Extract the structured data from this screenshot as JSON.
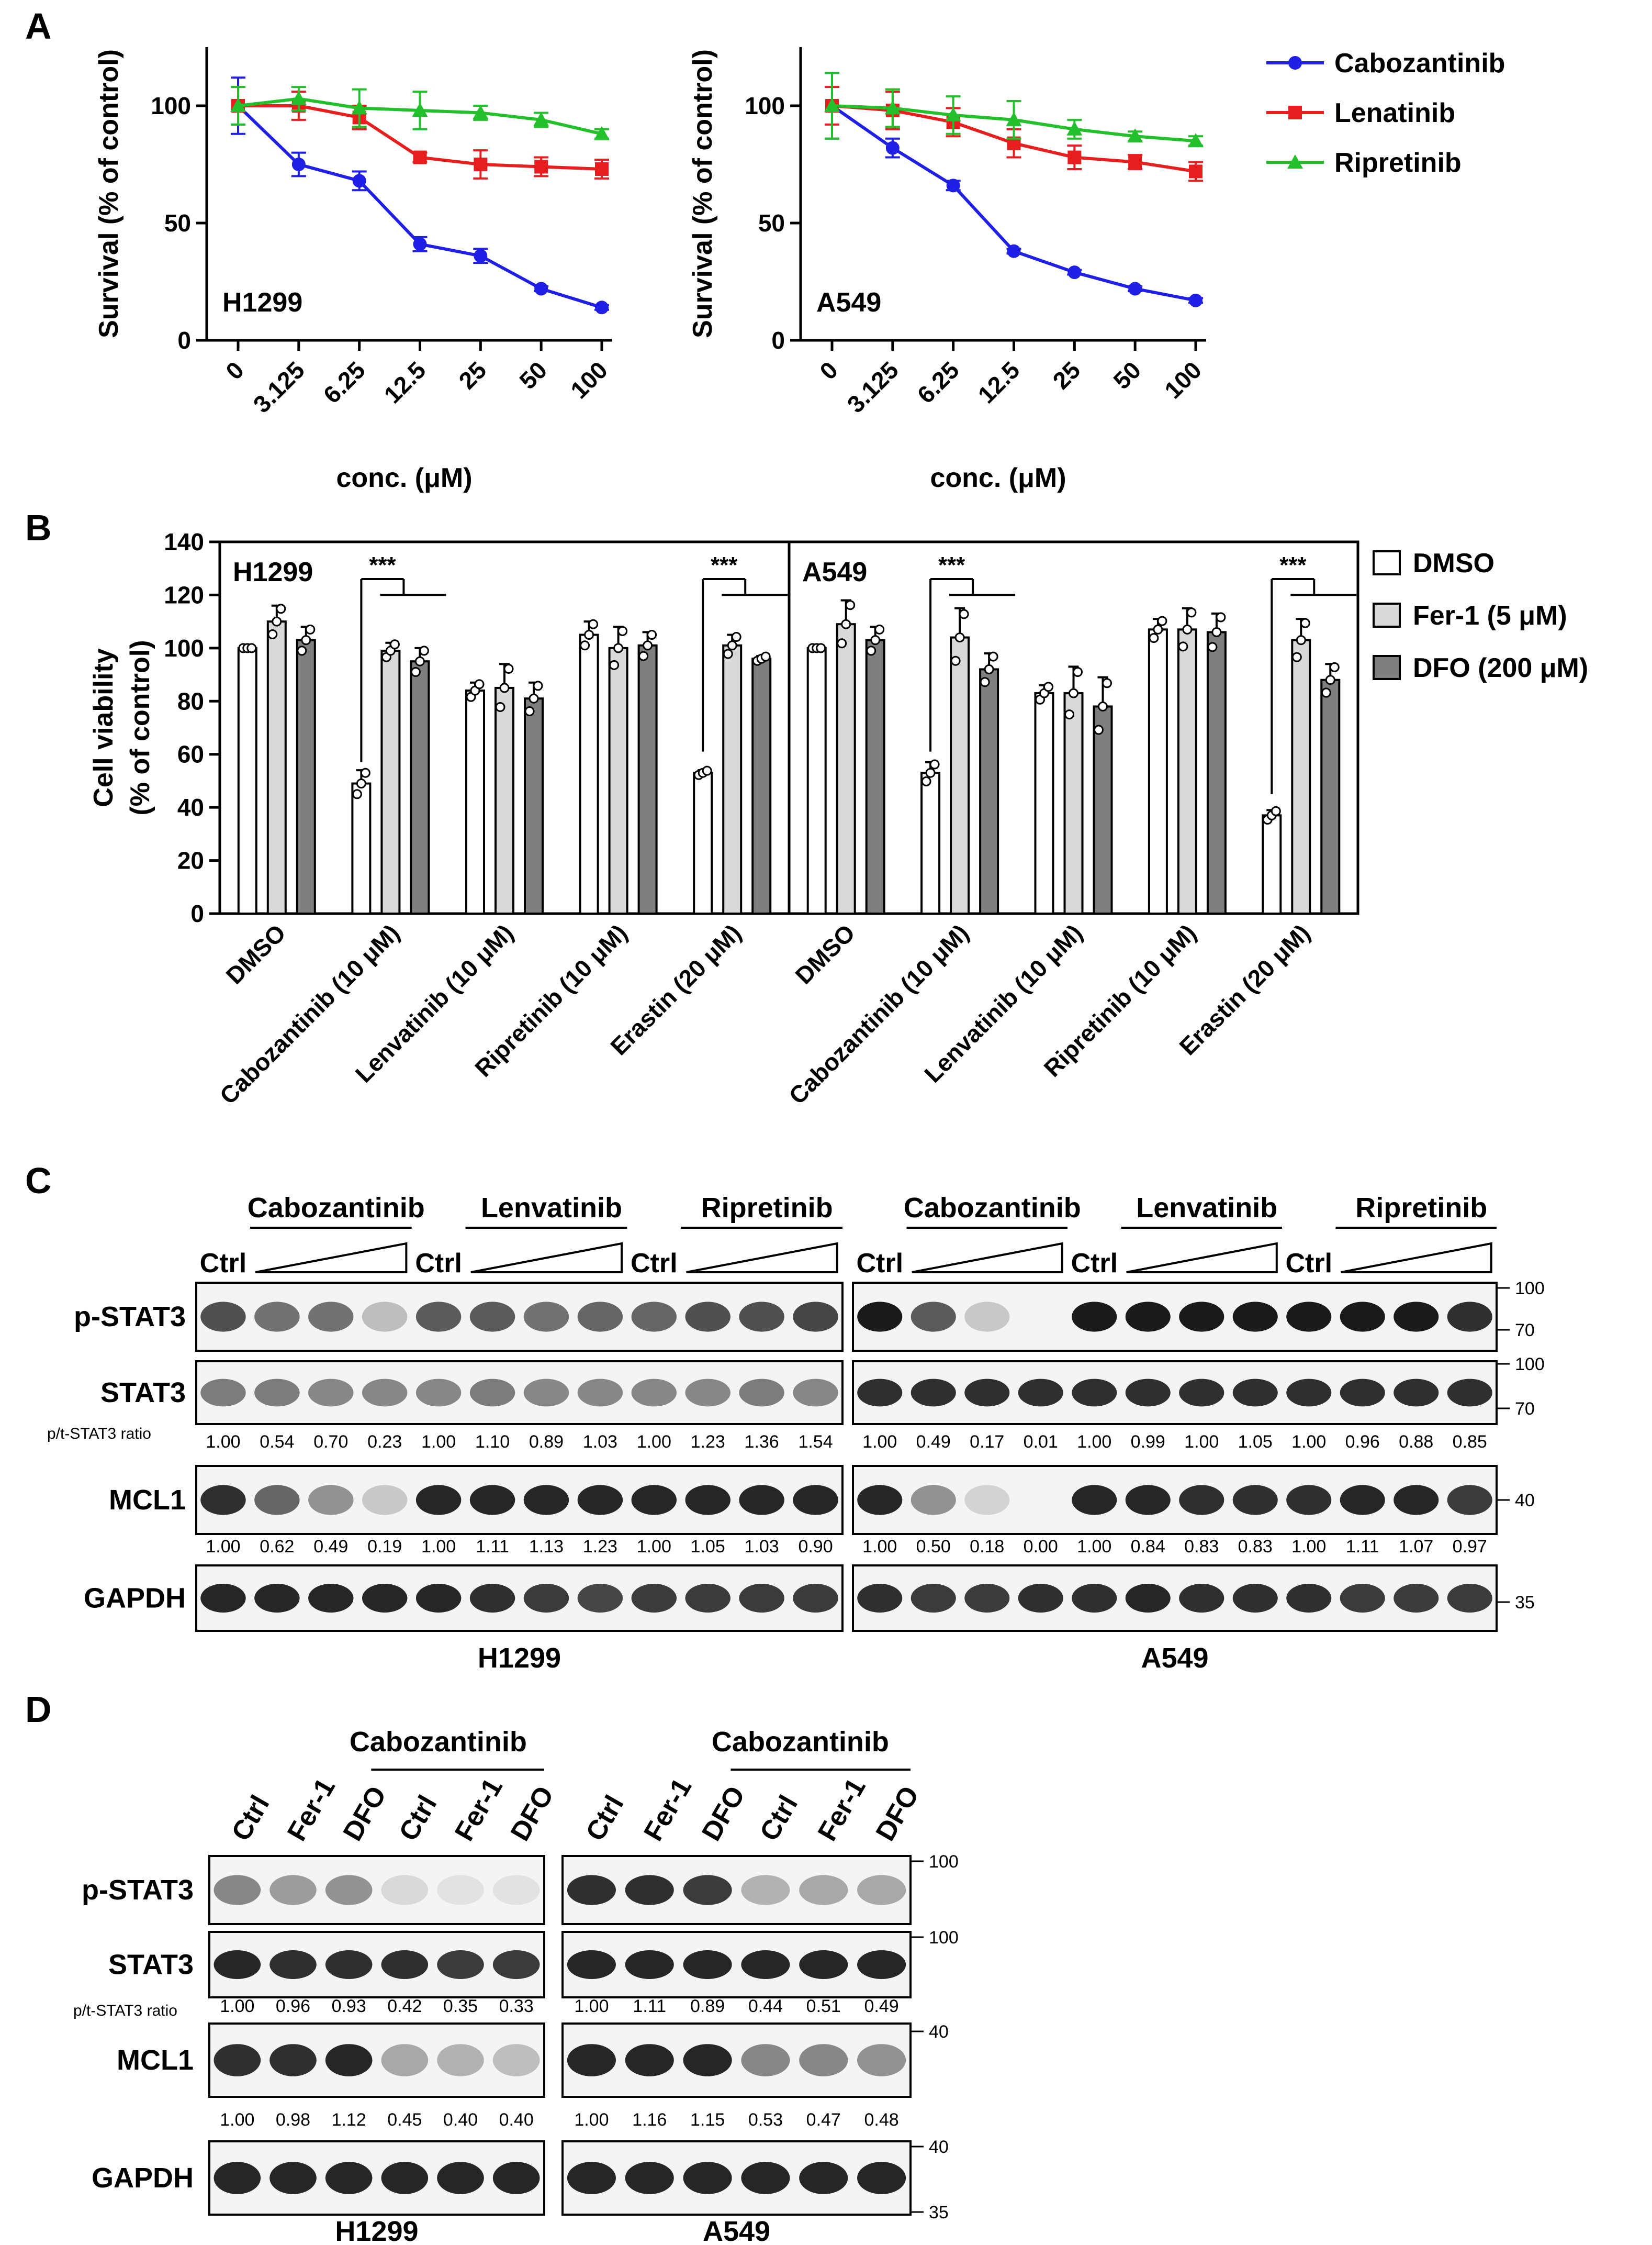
{
  "panels": {
    "A": "A",
    "B": "B",
    "C": "C",
    "D": "D"
  },
  "colors": {
    "cabozantinib": "#1f1fe6",
    "lenatinib": "#e61e1e",
    "ripretinib": "#22c02a",
    "dmso_bar": "#ffffff",
    "fer1_bar": "#d9d9d9",
    "dfo_bar": "#7f7f7f",
    "band": "#1a1a1a"
  },
  "panel_a": {
    "x_title": "conc. (μM)",
    "y_title": "Survival (% of control)",
    "legend": [
      "Cabozantinib",
      "Lenatinib",
      "Ripretinib"
    ],
    "chart_data": [
      {
        "type": "line",
        "cell_line": "H1299",
        "x": [
          "0",
          "3.125",
          "6.25",
          "12.5",
          "25",
          "50",
          "100"
        ],
        "ylim": [
          0,
          125
        ],
        "yticks": [
          0,
          50,
          100
        ],
        "series": [
          {
            "name": "Cabozantinib",
            "values": [
              100,
              75,
              68,
              41,
              36,
              22,
              14
            ],
            "err": [
              12,
              5,
              4,
              3,
              3,
              1,
              1
            ]
          },
          {
            "name": "Lenatinib",
            "values": [
              100,
              100,
              95,
              78,
              75,
              74,
              73
            ],
            "err": [
              8,
              6,
              5,
              2,
              6,
              4,
              4
            ]
          },
          {
            "name": "Ripretinib",
            "values": [
              100,
              103,
              99,
              98,
              97,
              94,
              88
            ],
            "err": [
              8,
              5,
              8,
              8,
              3,
              3,
              2
            ]
          }
        ]
      },
      {
        "type": "line",
        "cell_line": "A549",
        "x": [
          "0",
          "3.125",
          "6.25",
          "12.5",
          "25",
          "50",
          "100"
        ],
        "ylim": [
          0,
          125
        ],
        "yticks": [
          0,
          50,
          100
        ],
        "series": [
          {
            "name": "Cabozantinib",
            "values": [
              100,
              82,
              66,
              38,
              29,
              22,
              17
            ],
            "err": [
              14,
              4,
              2,
              1,
              1,
              1,
              1
            ]
          },
          {
            "name": "Lenatinib",
            "values": [
              100,
              98,
              93,
              84,
              78,
              76,
              72
            ],
            "err": [
              8,
              8,
              6,
              6,
              5,
              3,
              4
            ]
          },
          {
            "name": "Ripretinib",
            "values": [
              100,
              99,
              96,
              94,
              90,
              87,
              85
            ],
            "err": [
              14,
              8,
              8,
              8,
              4,
              2,
              2
            ]
          }
        ]
      }
    ]
  },
  "panel_b": {
    "y_title_line1": "Cell viability",
    "y_title_line2": "(% of control)",
    "significance": "***",
    "legend": [
      "DMSO",
      "Fer-1 (5 μM)",
      "DFO (200 μM)"
    ],
    "chart_data": {
      "type": "bar",
      "ylim": [
        0,
        140
      ],
      "yticks": [
        0,
        20,
        40,
        60,
        80,
        100,
        120,
        140
      ],
      "groups": [
        {
          "cell_line": "H1299",
          "categories": [
            "DMSO",
            "Cabozantinib (10 μM)",
            "Lenvatinib (10 μM)",
            "Ripretinib (10 μM)",
            "Erastin (20 μM)"
          ],
          "series": [
            {
              "name": "DMSO",
              "values": [
                100,
                49,
                84,
                105,
                53
              ],
              "err": [
                0,
                5,
                3,
                5,
                1
              ]
            },
            {
              "name": "Fer-1 (5 μM)",
              "values": [
                110,
                99,
                85,
                100,
                101
              ],
              "err": [
                6,
                3,
                9,
                8,
                4
              ]
            },
            {
              "name": "DFO (200 μM)",
              "values": [
                103,
                95,
                81,
                101,
                96
              ],
              "err": [
                5,
                5,
                6,
                5,
                1
              ]
            }
          ]
        },
        {
          "cell_line": "A549",
          "categories": [
            "DMSO",
            "Cabozantinib (10 μM)",
            "Lenvatinib (10 μM)",
            "Ripretinib (10 μM)",
            "Erastin (20 μM)"
          ],
          "series": [
            {
              "name": "DMSO",
              "values": [
                100,
                53,
                83,
                107,
                37
              ],
              "err": [
                0,
                4,
                3,
                4,
                2
              ]
            },
            {
              "name": "Fer-1 (5 μM)",
              "values": [
                109,
                104,
                83,
                107,
                103
              ],
              "err": [
                9,
                11,
                10,
                8,
                8
              ]
            },
            {
              "name": "DFO (200 μM)",
              "values": [
                103,
                92,
                78,
                106,
                88
              ],
              "err": [
                5,
                6,
                11,
                7,
                6
              ]
            }
          ]
        }
      ],
      "sig_pairs": [
        {
          "group": 0,
          "category": 1
        },
        {
          "group": 0,
          "category": 4
        },
        {
          "group": 1,
          "category": 1
        },
        {
          "group": 1,
          "category": 4
        }
      ]
    }
  },
  "panel_c": {
    "drugs": [
      "Cabozantinib",
      "Lenvatinib",
      "Ripretinib"
    ],
    "ctrl": "Ctrl",
    "rows": [
      "p-STAT3",
      "STAT3",
      "MCL1",
      "GAPDH"
    ],
    "ratio_label": "p/t-STAT3  ratio",
    "cell_lines": [
      "H1299",
      "A549"
    ],
    "mw": {
      "pstat3": [
        "100",
        "70"
      ],
      "stat3": [
        "100",
        "70"
      ],
      "mcl1": [
        "40"
      ],
      "gapdh": [
        "35"
      ]
    },
    "blots": [
      {
        "ratio": [
          "1.00",
          "0.54",
          "0.70",
          "0.23",
          "1.00",
          "1.10",
          "0.89",
          "1.03",
          "1.00",
          "1.23",
          "1.36",
          "1.54"
        ],
        "mcl1": [
          "1.00",
          "0.62",
          "0.49",
          "0.19",
          "1.00",
          "1.11",
          "1.13",
          "1.23",
          "1.00",
          "1.05",
          "1.03",
          "0.90"
        ],
        "intensity": {
          "pstat3": [
            0.75,
            0.6,
            0.6,
            0.25,
            0.7,
            0.7,
            0.6,
            0.65,
            0.65,
            0.75,
            0.75,
            0.8
          ],
          "stat3": [
            0.55,
            0.55,
            0.5,
            0.5,
            0.5,
            0.55,
            0.5,
            0.5,
            0.5,
            0.5,
            0.55,
            0.5
          ],
          "mcl1": [
            0.9,
            0.65,
            0.45,
            0.2,
            0.95,
            0.95,
            0.95,
            0.95,
            0.95,
            0.95,
            0.95,
            0.95
          ],
          "gapdh": [
            0.95,
            0.95,
            0.95,
            0.95,
            0.95,
            0.9,
            0.85,
            0.8,
            0.85,
            0.85,
            0.85,
            0.85
          ]
        }
      },
      {
        "ratio": [
          "1.00",
          "0.49",
          "0.17",
          "0.01",
          "1.00",
          "0.99",
          "1.00",
          "1.05",
          "1.00",
          "0.96",
          "0.88",
          "0.85"
        ],
        "mcl1": [
          "1.00",
          "0.50",
          "0.18",
          "0.00",
          "1.00",
          "0.84",
          "0.83",
          "0.83",
          "1.00",
          "1.11",
          "1.07",
          "0.97"
        ],
        "intensity": {
          "pstat3": [
            1,
            0.7,
            0.2,
            0,
            1,
            1,
            1,
            1,
            1,
            1,
            1,
            0.9
          ],
          "stat3": [
            0.9,
            0.9,
            0.9,
            0.9,
            0.9,
            0.9,
            0.9,
            0.9,
            0.9,
            0.9,
            0.9,
            0.9
          ],
          "mcl1": [
            0.95,
            0.45,
            0.15,
            0,
            0.95,
            0.95,
            0.9,
            0.9,
            0.9,
            0.95,
            0.95,
            0.85
          ],
          "gapdh": [
            0.9,
            0.85,
            0.85,
            0.9,
            0.9,
            0.95,
            0.9,
            0.9,
            0.9,
            0.85,
            0.85,
            0.85
          ]
        }
      }
    ]
  },
  "panel_d": {
    "group_label": "Cabozantinib",
    "lanes": [
      "Ctrl",
      "Fer-1",
      "DFO",
      "Ctrl",
      "Fer-1",
      "DFO"
    ],
    "rows": [
      "p-STAT3",
      "STAT3",
      "MCL1",
      "GAPDH"
    ],
    "ratio_label": "p/t-STAT3  ratio",
    "cell_lines": [
      "H1299",
      "A549"
    ],
    "mw": {
      "pstat3": [
        "100"
      ],
      "stat3": [
        "100"
      ],
      "mcl1": [
        "40"
      ],
      "gapdh": [
        "40",
        "35"
      ]
    },
    "blots": [
      {
        "ratio": [
          "1.00",
          "0.96",
          "0.93",
          "0.42",
          "0.35",
          "0.33"
        ],
        "mcl1": [
          "1.00",
          "0.98",
          "1.12",
          "0.45",
          "0.40",
          "0.40"
        ],
        "intensity": {
          "pstat3": [
            0.5,
            0.4,
            0.45,
            0.12,
            0.08,
            0.08
          ],
          "stat3": [
            0.95,
            0.9,
            0.9,
            0.9,
            0.85,
            0.85
          ],
          "mcl1": [
            0.9,
            0.9,
            0.95,
            0.35,
            0.3,
            0.25
          ],
          "gapdh": [
            0.95,
            0.95,
            0.95,
            0.95,
            0.95,
            0.95
          ]
        }
      },
      {
        "ratio": [
          "1.00",
          "1.11",
          "0.89",
          "0.44",
          "0.51",
          "0.49"
        ],
        "mcl1": [
          "1.00",
          "1.16",
          "1.15",
          "0.53",
          "0.47",
          "0.48"
        ],
        "intensity": {
          "pstat3": [
            0.9,
            0.9,
            0.85,
            0.3,
            0.35,
            0.35
          ],
          "stat3": [
            0.95,
            0.95,
            0.95,
            0.95,
            0.95,
            0.95
          ],
          "mcl1": [
            0.95,
            0.95,
            0.95,
            0.5,
            0.5,
            0.45
          ],
          "gapdh": [
            0.95,
            0.95,
            0.95,
            0.95,
            0.95,
            0.95
          ]
        }
      }
    ]
  }
}
